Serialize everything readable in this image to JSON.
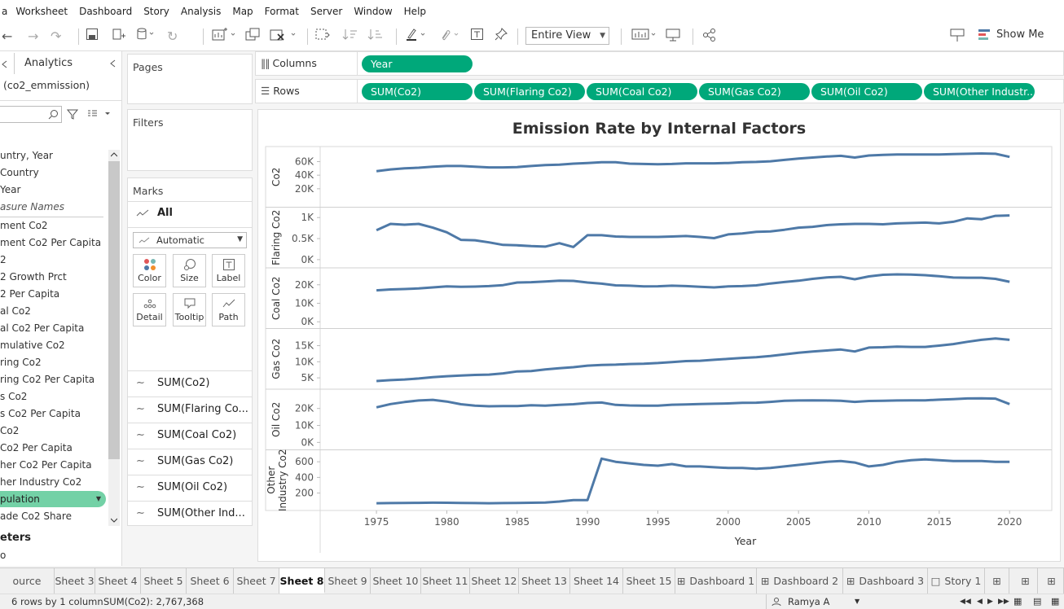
{
  "menu": [
    "a",
    "Worksheet",
    "Dashboard",
    "Story",
    "Analysis",
    "Map",
    "Format",
    "Server",
    "Window",
    "Help"
  ],
  "toolbar": {
    "view_select": "Entire View",
    "show_me": "Show Me"
  },
  "datapane": {
    "analytics_tab": "Analytics",
    "datasource": "(co2_emmission)",
    "fields": [
      {
        "label": "untry, Year",
        "italic": false
      },
      {
        "label": "Country",
        "italic": false
      },
      {
        "label": "Year",
        "italic": false
      },
      {
        "label": "asure Names",
        "italic": true
      },
      {
        "label": "ment Co2",
        "italic": false
      },
      {
        "label": "ment Co2 Per Capita",
        "italic": false
      },
      {
        "label": "2",
        "italic": false
      },
      {
        "label": "2 Growth Prct",
        "italic": false
      },
      {
        "label": "2 Per Capita",
        "italic": false
      },
      {
        "label": "al Co2",
        "italic": false
      },
      {
        "label": "al Co2 Per Capita",
        "italic": false
      },
      {
        "label": "mulative Co2",
        "italic": false
      },
      {
        "label": "ring Co2",
        "italic": false
      },
      {
        "label": "ring Co2 Per Capita",
        "italic": false
      },
      {
        "label": "s Co2",
        "italic": false
      },
      {
        "label": "s Co2 Per Capita",
        "italic": false
      },
      {
        "label": "Co2",
        "italic": false
      },
      {
        "label": "Co2 Per Capita",
        "italic": false
      },
      {
        "label": "her Co2 Per Capita",
        "italic": false
      },
      {
        "label": "her Industry Co2",
        "italic": false
      }
    ],
    "highlighted_field": "pulation",
    "last_field": "ade Co2 Share",
    "parameters_title": "eters",
    "param_item": "o"
  },
  "cards": {
    "pages": "Pages",
    "filters": "Filters",
    "marks": "Marks",
    "marks_all": "All",
    "mark_type": "Automatic",
    "mark_buttons": [
      "Color",
      "Size",
      "Label",
      "Detail",
      "Tooltip",
      "Path"
    ],
    "mark_rows": [
      "SUM(Co2)",
      "SUM(Flaring Co...",
      "SUM(Coal Co2)",
      "SUM(Gas Co2)",
      "SUM(Oil Co2)",
      "SUM(Other Ind..."
    ]
  },
  "shelves": {
    "columns_label": "Columns",
    "rows_label": "Rows",
    "columns": [
      "Year"
    ],
    "rows": [
      "SUM(Co2)",
      "SUM(Flaring Co2)",
      "SUM(Coal Co2)",
      "SUM(Gas Co2)",
      "SUM(Oil Co2)",
      "SUM(Other Industr.."
    ]
  },
  "chart_data": {
    "type": "line",
    "title": "Emission Rate by Internal Factors",
    "xlabel": "Year",
    "x_ticks": [
      1975,
      1980,
      1985,
      1990,
      1995,
      2000,
      2005,
      2010,
      2015,
      2020
    ],
    "x": [
      1975,
      1976,
      1977,
      1978,
      1979,
      1980,
      1981,
      1982,
      1983,
      1984,
      1985,
      1986,
      1987,
      1988,
      1989,
      1990,
      1991,
      1992,
      1993,
      1994,
      1995,
      1996,
      1997,
      1998,
      1999,
      2000,
      2001,
      2002,
      2003,
      2004,
      2005,
      2006,
      2007,
      2008,
      2009,
      2010,
      2011,
      2012,
      2013,
      2014,
      2015,
      2016,
      2017,
      2018,
      2019,
      2020
    ],
    "line_color": "#4e79a7",
    "series": [
      {
        "name": "Co2",
        "ticks": [
          {
            "v": 20000,
            "t": "20K"
          },
          {
            "v": 40000,
            "t": "40K"
          },
          {
            "v": 60000,
            "t": "60K"
          }
        ],
        "ylim": [
          0,
          75000
        ],
        "values": [
          46000,
          48500,
          50000,
          51000,
          52500,
          53500,
          53500,
          52500,
          51500,
          51500,
          52000,
          53500,
          55000,
          55500,
          57000,
          58000,
          59000,
          59000,
          57000,
          56500,
          56000,
          56500,
          57500,
          57500,
          57500,
          58000,
          59000,
          59500,
          60500,
          62500,
          64500,
          66000,
          67500,
          68500,
          66000,
          69000,
          70000,
          70500,
          70500,
          70500,
          70500,
          71000,
          71500,
          72000,
          71500,
          67000
        ]
      },
      {
        "name": "Flaring Co2",
        "ticks": [
          {
            "v": 0,
            "t": "0K"
          },
          {
            "v": 500,
            "t": "0.5K"
          },
          {
            "v": 1000,
            "t": "1K"
          }
        ],
        "ylim": [
          -80,
          1130
        ],
        "values": [
          700,
          850,
          830,
          850,
          760,
          650,
          470,
          460,
          410,
          350,
          340,
          320,
          310,
          390,
          300,
          580,
          580,
          550,
          540,
          540,
          540,
          550,
          560,
          540,
          510,
          600,
          620,
          660,
          670,
          710,
          760,
          780,
          820,
          840,
          850,
          850,
          840,
          860,
          870,
          880,
          860,
          900,
          980,
          960,
          1040,
          1050
        ]
      },
      {
        "name": "Coal Co2",
        "ticks": [
          {
            "v": 0,
            "t": "0K"
          },
          {
            "v": 10000,
            "t": "10K"
          },
          {
            "v": 20000,
            "t": "20K"
          }
        ],
        "ylim": [
          -1000,
          26500
        ],
        "values": [
          17000,
          17500,
          17700,
          18000,
          18600,
          19100,
          18900,
          19000,
          19300,
          19800,
          21200,
          21400,
          21800,
          22200,
          22100,
          21200,
          20600,
          19700,
          19500,
          19100,
          19200,
          19500,
          19300,
          18900,
          18600,
          19100,
          19300,
          19700,
          20700,
          21500,
          22200,
          23200,
          24000,
          24300,
          23000,
          24500,
          25400,
          25600,
          25500,
          25200,
          24600,
          23900,
          23800,
          23800,
          23200,
          21600
        ]
      },
      {
        "name": "Gas Co2",
        "ticks": [
          {
            "v": 5000,
            "t": "5K"
          },
          {
            "v": 10000,
            "t": "10K"
          },
          {
            "v": 15000,
            "t": "15K"
          }
        ],
        "ylim": [
          3000,
          18800
        ],
        "values": [
          4000,
          4300,
          4500,
          4800,
          5200,
          5500,
          5700,
          5900,
          6000,
          6400,
          7000,
          7100,
          7600,
          8000,
          8300,
          8800,
          9000,
          9100,
          9300,
          9400,
          9600,
          9900,
          10200,
          10300,
          10600,
          10900,
          11200,
          11400,
          11800,
          12300,
          12800,
          13200,
          13500,
          13800,
          13200,
          14400,
          14500,
          14700,
          14600,
          14600,
          15000,
          15500,
          16200,
          16800,
          17200,
          16800
        ]
      },
      {
        "name": "Oil Co2",
        "ticks": [
          {
            "v": 0,
            "t": "0K"
          },
          {
            "v": 10000,
            "t": "10K"
          },
          {
            "v": 20000,
            "t": "20K"
          }
        ],
        "ylim": [
          -1500,
          28500
        ],
        "values": [
          20700,
          22600,
          23800,
          24700,
          25100,
          24100,
          22500,
          21700,
          21300,
          21400,
          21400,
          21900,
          21700,
          22100,
          22500,
          23200,
          23500,
          22100,
          21800,
          21700,
          21700,
          22200,
          22400,
          22600,
          22800,
          23000,
          23300,
          23400,
          23900,
          24500,
          24700,
          24800,
          24700,
          24500,
          23900,
          24400,
          24500,
          24700,
          24800,
          24800,
          25200,
          25500,
          25900,
          26000,
          25800,
          22600
        ]
      },
      {
        "name": "Other Industry Co2",
        "ticks": [
          {
            "v": 200,
            "t": "200"
          },
          {
            "v": 400,
            "t": "400"
          },
          {
            "v": 600,
            "t": "600"
          }
        ],
        "ylim": [
          40,
          690
        ],
        "values": [
          70,
          72,
          73,
          75,
          77,
          76,
          74,
          72,
          70,
          72,
          74,
          76,
          80,
          92,
          110,
          110,
          640,
          600,
          580,
          560,
          550,
          570,
          540,
          540,
          530,
          520,
          520,
          510,
          520,
          540,
          560,
          580,
          600,
          610,
          590,
          540,
          560,
          600,
          620,
          630,
          620,
          610,
          610,
          610,
          600,
          600
        ]
      }
    ]
  },
  "tabs": [
    "ource",
    "Sheet 3",
    "Sheet 4",
    "Sheet 5",
    "Sheet 6",
    "Sheet 7",
    "Sheet 8",
    "Sheet 9",
    "Sheet 10",
    "Sheet 11",
    "Sheet 12",
    "Sheet 13",
    "Sheet 14",
    "Sheet 15",
    "Dashboard 1",
    "Dashboard 2",
    "Dashboard 3",
    "Story 1"
  ],
  "active_tab": "Sheet 8",
  "status": {
    "dims": "6 rows by 1 column",
    "sum": "SUM(Co2): 2,767,368",
    "user": "Ramya A"
  }
}
